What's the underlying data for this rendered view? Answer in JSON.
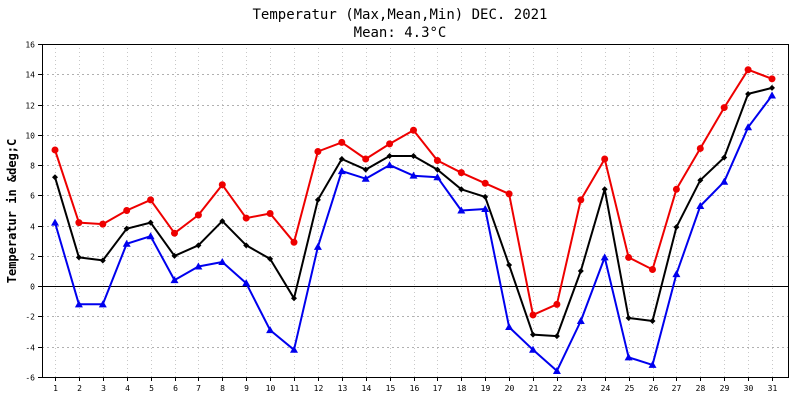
{
  "chart_data": {
    "type": "line",
    "title": "Temperatur (Max,Mean,Min) DEC. 2021",
    "subtitle": "Mean: 4.3°C",
    "ylabel": "Temperatur in &deg;C",
    "xlabel": "",
    "categories": [
      "1",
      "2",
      "3",
      "4",
      "5",
      "6",
      "7",
      "8",
      "9",
      "10",
      "11",
      "12",
      "13",
      "14",
      "15",
      "16",
      "17",
      "18",
      "19",
      "20",
      "21",
      "22",
      "23",
      "24",
      "25",
      "26",
      "27",
      "28",
      "29",
      "30",
      "31"
    ],
    "ylim": [
      -6,
      16
    ],
    "yticks": [
      -6,
      -4,
      -2,
      0,
      2,
      4,
      6,
      8,
      10,
      12,
      14,
      16
    ],
    "grid": true,
    "series": [
      {
        "name": "Max",
        "color": "#ee0000",
        "marker": "circle",
        "values": [
          9.0,
          4.2,
          4.1,
          5.0,
          5.7,
          3.5,
          4.7,
          6.7,
          4.5,
          4.8,
          2.9,
          8.9,
          9.5,
          8.4,
          9.4,
          10.3,
          8.3,
          7.5,
          6.8,
          6.1,
          -1.9,
          -1.2,
          5.7,
          8.4,
          1.9,
          1.1,
          6.4,
          9.1,
          11.8,
          14.3,
          13.7
        ]
      },
      {
        "name": "Mean",
        "color": "#000000",
        "marker": "diamond",
        "values": [
          7.2,
          1.9,
          1.7,
          3.8,
          4.2,
          2.0,
          2.7,
          4.3,
          2.7,
          1.8,
          -0.8,
          5.7,
          8.4,
          7.7,
          8.6,
          8.6,
          7.7,
          6.4,
          5.9,
          1.4,
          -3.2,
          -3.3,
          1.0,
          6.4,
          -2.1,
          -2.3,
          3.9,
          7.0,
          8.5,
          12.7,
          13.1
        ]
      },
      {
        "name": "Min",
        "color": "#0000ee",
        "marker": "triangle",
        "values": [
          4.2,
          -1.2,
          -1.2,
          2.8,
          3.3,
          0.4,
          1.3,
          1.6,
          0.2,
          -2.9,
          -4.2,
          2.6,
          7.6,
          7.1,
          8.0,
          7.3,
          7.2,
          5.0,
          5.1,
          -2.7,
          -4.2,
          -5.6,
          -2.3,
          1.9,
          -4.7,
          -5.2,
          0.8,
          5.3,
          6.9,
          10.5,
          12.6
        ]
      }
    ]
  }
}
